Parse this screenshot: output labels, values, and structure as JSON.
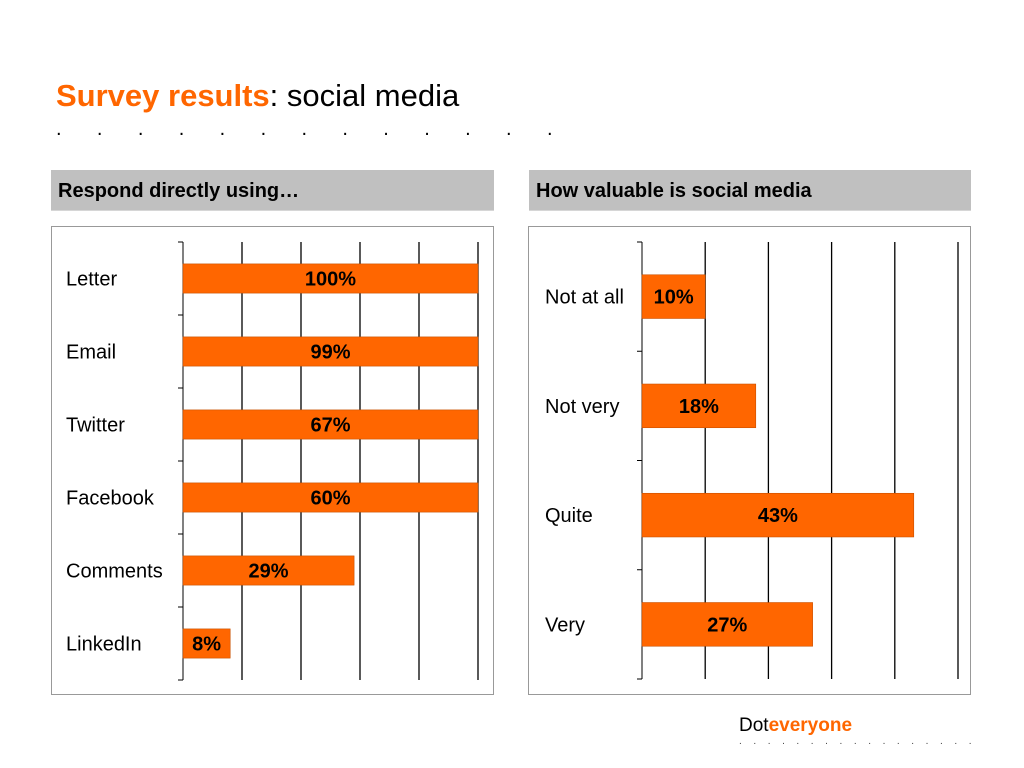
{
  "slide": {
    "title_accent": "Survey results",
    "title_rest": ": social media",
    "title_dots": ". . . . . . . . . . . . .",
    "brand_prefix": "Dot",
    "brand_accent": "everyone",
    "brand_dots": ". . . . . . . . . . . . . . . . ."
  },
  "colors": {
    "accent": "#ff6600",
    "bar": "#ff6600",
    "header_bg": "#c0c0c0",
    "grid": "#000000"
  },
  "chart_data": [
    {
      "type": "bar",
      "orientation": "horizontal",
      "title": "Respond directly using…",
      "categories": [
        "Letter",
        "Email",
        "Twitter",
        "Facebook",
        "Comments",
        "LinkedIn"
      ],
      "values": [
        100,
        99,
        67,
        60,
        29,
        8
      ],
      "value_labels": [
        "100%",
        "99%",
        "67%",
        "60%",
        "29%",
        "8%"
      ],
      "xlim": [
        0,
        50
      ],
      "grid": true
    },
    {
      "type": "bar",
      "orientation": "horizontal",
      "title": "How valuable is social media",
      "categories": [
        "Not at all",
        "Not very",
        "Quite",
        "Very"
      ],
      "values": [
        10,
        18,
        43,
        27
      ],
      "value_labels": [
        "10%",
        "18%",
        "43%",
        "27%"
      ],
      "xlim": [
        0,
        50
      ],
      "grid": true
    }
  ]
}
